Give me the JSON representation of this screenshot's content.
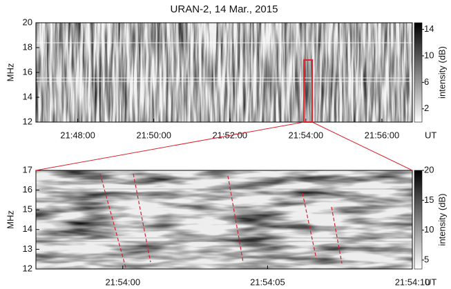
{
  "chart_data": [
    {
      "type": "spectrogram",
      "title": "URAN-2,  14 Mar., 2015",
      "ylabel": "MHz",
      "xlabel": "UT",
      "xlim": [
        78414,
        79008
      ],
      "xticks": [
        {
          "value": 78480,
          "label": "21:48:00"
        },
        {
          "value": 78600,
          "label": "21:50:00"
        },
        {
          "value": 78720,
          "label": "21:52:00"
        },
        {
          "value": 78840,
          "label": "21:54:00"
        },
        {
          "value": 78960,
          "label": "21:56:00"
        }
      ],
      "ylim": [
        12,
        20
      ],
      "yticks": [
        12,
        14,
        16,
        18,
        20
      ],
      "colorbar": {
        "label": "intensity (dB)",
        "lim": [
          0,
          15
        ],
        "ticks": [
          2,
          6,
          10,
          14
        ]
      },
      "zoom_box": {
        "xlim": [
          78837,
          78850
        ],
        "ylim": [
          12,
          17
        ],
        "color": "#e0202a"
      }
    },
    {
      "type": "spectrogram",
      "ylabel": "MHz",
      "xlabel": "UT",
      "xlim": [
        78837,
        78850
      ],
      "xticks": [
        {
          "value": 78840,
          "label": "21:54:00"
        },
        {
          "value": 78845,
          "label": "21:54:05"
        },
        {
          "value": 78850,
          "label": "21:54:10"
        }
      ],
      "ylim": [
        12,
        17
      ],
      "yticks": [
        12,
        13,
        14,
        15,
        16,
        17
      ],
      "colorbar": {
        "label": "intensity (dB)",
        "lim": [
          3.5,
          20
        ],
        "ticks": [
          5,
          10,
          15,
          20
        ]
      }
    }
  ]
}
